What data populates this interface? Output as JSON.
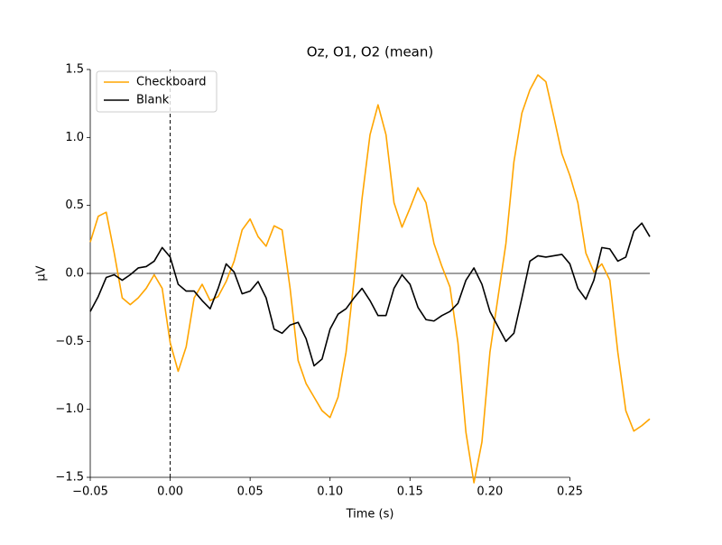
{
  "chart_data": {
    "type": "line",
    "title": "Oz, O1, O2 (mean)",
    "x_label": "Time (s)",
    "y_label": "µV",
    "x": [
      -0.05,
      -0.045,
      -0.04,
      -0.035,
      -0.03,
      -0.025,
      -0.02,
      -0.015,
      -0.01,
      -0.005,
      0,
      0.005,
      0.01,
      0.015,
      0.02,
      0.025,
      0.03,
      0.035,
      0.04,
      0.045,
      0.05,
      0.055,
      0.06,
      0.065,
      0.07,
      0.075,
      0.08,
      0.085,
      0.09,
      0.095,
      0.1,
      0.105,
      0.11,
      0.115,
      0.12,
      0.125,
      0.13,
      0.135,
      0.14,
      0.145,
      0.15,
      0.155,
      0.16,
      0.165,
      0.17,
      0.175,
      0.18,
      0.185,
      0.19,
      0.195,
      0.2,
      0.205,
      0.21,
      0.215,
      0.22,
      0.225,
      0.23,
      0.235,
      0.24,
      0.245,
      0.25,
      0.255,
      0.26,
      0.265,
      0.27,
      0.275,
      0.28,
      0.285,
      0.29,
      0.295,
      0.3
    ],
    "series": [
      {
        "name": "Checkboard",
        "color": "#ffa500",
        "values": [
          0.23,
          0.42,
          0.45,
          0.15,
          -0.18,
          -0.23,
          -0.18,
          -0.11,
          -0.01,
          -0.11,
          -0.51,
          -0.72,
          -0.54,
          -0.18,
          -0.08,
          -0.2,
          -0.17,
          -0.06,
          0.09,
          0.32,
          0.4,
          0.27,
          0.2,
          0.35,
          0.32,
          -0.11,
          -0.64,
          -0.81,
          -0.91,
          -1.01,
          -1.06,
          -0.91,
          -0.58,
          -0.05,
          0.55,
          1.02,
          1.24,
          1.02,
          0.52,
          0.34,
          0.48,
          0.63,
          0.52,
          0.22,
          0.05,
          -0.1,
          -0.51,
          -1.17,
          -1.54,
          -1.24,
          -0.58,
          -0.18,
          0.22,
          0.82,
          1.18,
          1.35,
          1.46,
          1.41,
          1.15,
          0.88,
          0.72,
          0.52,
          0.15,
          0.01,
          0.07,
          -0.05,
          -0.58,
          -1.01,
          -1.16,
          -1.12,
          -1.07
        ]
      },
      {
        "name": "Blank",
        "color": "#000000",
        "values": [
          -0.28,
          -0.17,
          -0.03,
          -0.01,
          -0.05,
          -0.01,
          0.04,
          0.05,
          0.09,
          0.19,
          0.12,
          -0.08,
          -0.13,
          -0.13,
          -0.2,
          -0.26,
          -0.11,
          0.07,
          0.01,
          -0.15,
          -0.13,
          -0.06,
          -0.18,
          -0.41,
          -0.44,
          -0.38,
          -0.36,
          -0.48,
          -0.68,
          -0.63,
          -0.41,
          -0.3,
          -0.26,
          -0.18,
          -0.11,
          -0.2,
          -0.31,
          -0.31,
          -0.11,
          -0.01,
          -0.08,
          -0.25,
          -0.34,
          -0.35,
          -0.31,
          -0.28,
          -0.22,
          -0.05,
          0.04,
          -0.08,
          -0.28,
          -0.39,
          -0.5,
          -0.44,
          -0.18,
          0.09,
          0.13,
          0.12,
          0.13,
          0.14,
          0.07,
          -0.11,
          -0.19,
          -0.05,
          0.19,
          0.18,
          0.09,
          0.12,
          0.31,
          0.37,
          0.27
        ]
      }
    ],
    "xlim": [
      -0.05,
      0.3
    ],
    "ylim": [
      -1.5,
      1.5
    ],
    "xticks": [
      {
        "value": -0.05,
        "label": "−0.05"
      },
      {
        "value": 0,
        "label": "0.00"
      },
      0.05,
      {
        "value": 0.1,
        "label": "0.10"
      },
      0.15,
      {
        "value": 0.2,
        "label": "0.20"
      },
      0.25
    ],
    "yticks": [
      {
        "value": -1.5,
        "label": "−1.5"
      },
      {
        "value": -1,
        "label": "−1.0"
      },
      {
        "value": -0.5,
        "label": "−0.5"
      },
      {
        "value": 0,
        "label": "0.0"
      },
      0.5,
      {
        "value": 1,
        "label": "1.0"
      },
      1.5
    ],
    "legend": "upper left"
  }
}
